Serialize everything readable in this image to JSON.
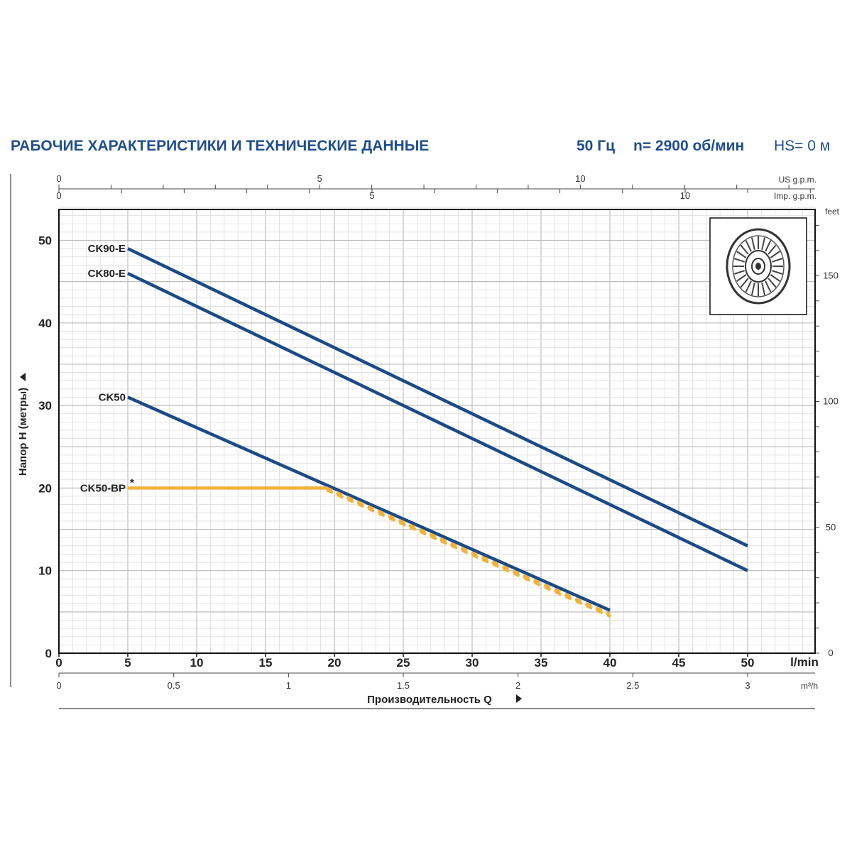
{
  "header": {
    "title": "РАБОЧИЕ ХАРАКТЕРИСТИКИ И ТЕХНИЧЕСКИЕ ДАННЫЕ",
    "frequency": "50 Гц",
    "speed": "n= 2900 об/мин",
    "hs": "HS= 0 м",
    "accent": "#1f4e8c"
  },
  "chart_data": {
    "type": "line",
    "xlabel": "Производительность Q",
    "ylabel": "Напор H (метры)",
    "x_unit": "l/min",
    "x_ticks": [
      0,
      5,
      10,
      15,
      20,
      25,
      30,
      35,
      40,
      45,
      50
    ],
    "xlim": [
      0,
      55
    ],
    "ylim": [
      0,
      54
    ],
    "y_ticks": [
      0,
      10,
      20,
      30,
      40,
      50
    ],
    "grid": true,
    "secondary_axes": {
      "m3h": {
        "unit": "m³/h",
        "ticks": [
          "0",
          "0.5",
          "1",
          "1.5",
          "2",
          "2.5",
          "3"
        ]
      },
      "us_gpm": {
        "unit": "US g.p.m.",
        "ticks": [
          "0",
          "5",
          "10"
        ]
      },
      "imp_gpm": {
        "unit": "Imp. g.p.m.",
        "ticks": [
          "0",
          "5",
          "10"
        ]
      },
      "feet": {
        "unit": "feet",
        "ticks": [
          "0",
          "50",
          "100",
          "150"
        ]
      }
    },
    "series": [
      {
        "name": "CK90-E",
        "color": "#1b4a86",
        "dashed": false,
        "x": [
          5,
          50
        ],
        "y": [
          49,
          13
        ]
      },
      {
        "name": "CK80-E",
        "color": "#1b4a86",
        "dashed": false,
        "x": [
          5,
          50
        ],
        "y": [
          46,
          10
        ]
      },
      {
        "name": "CK50",
        "color": "#1b4a86",
        "dashed": false,
        "x": [
          5,
          40
        ],
        "y": [
          31,
          5.2
        ]
      },
      {
        "name": "CK50-BP",
        "color": "#f0b23c",
        "dashed": false,
        "x": [
          5,
          19.4
        ],
        "y": [
          20,
          20
        ]
      },
      {
        "name": "",
        "color": "#f0b23c",
        "dashed": true,
        "x": [
          19.4,
          40
        ],
        "y": [
          20,
          4.7
        ]
      }
    ],
    "annotations": [
      {
        "text": "*",
        "near": "CK50-BP"
      }
    ],
    "inset": "impeller-icon"
  }
}
